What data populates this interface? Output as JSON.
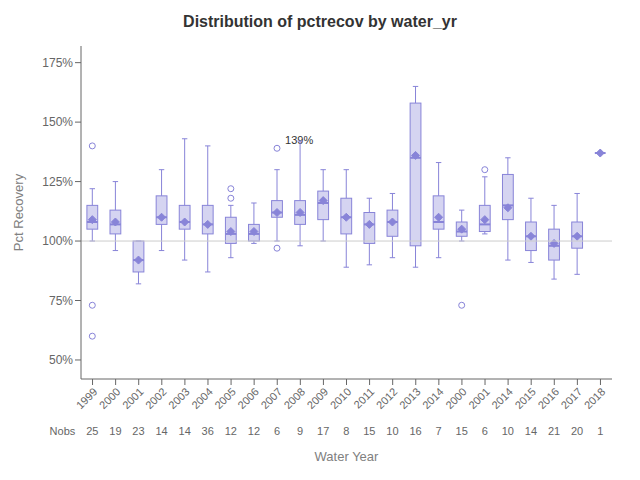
{
  "chart_data": {
    "type": "box",
    "title": "Distribution of pctrecov by water_yr",
    "x_label": "Water Year",
    "y_label": "Pct Recovery",
    "color": "#8884d8",
    "grid": false,
    "categories": [
      "1999",
      "2000",
      "2001",
      "2002",
      "2003",
      "2004",
      "2005",
      "2006",
      "2007",
      "2008",
      "2009",
      "2010",
      "2011",
      "2012",
      "2013",
      "2014",
      "2000",
      "2001",
      "2014",
      "2015",
      "2016",
      "2017",
      "2018"
    ],
    "boxes": [
      {
        "q1": 105,
        "med": 108,
        "q3": 115,
        "whislo": 100,
        "whishi": 122,
        "mean": 109,
        "fliers": [
          140,
          73,
          60
        ]
      },
      {
        "q1": 103,
        "med": 107,
        "q3": 113,
        "whislo": 96,
        "whishi": 125,
        "mean": 108,
        "fliers": []
      },
      {
        "q1": 87,
        "med": 92,
        "q3": 100,
        "whislo": 82,
        "whishi": 100,
        "mean": 92,
        "fliers": []
      },
      {
        "q1": 107,
        "med": 110,
        "q3": 119,
        "whislo": 96,
        "whishi": 130,
        "mean": 110,
        "fliers": []
      },
      {
        "q1": 105,
        "med": 108,
        "q3": 115,
        "whislo": 92,
        "whishi": 143,
        "mean": 108,
        "fliers": []
      },
      {
        "q1": 103,
        "med": 107,
        "q3": 115,
        "whislo": 87,
        "whishi": 140,
        "mean": 107,
        "fliers": []
      },
      {
        "q1": 99,
        "med": 103,
        "q3": 110,
        "whislo": 93,
        "whishi": 115,
        "mean": 104,
        "fliers": [
          122,
          118
        ]
      },
      {
        "q1": 100,
        "med": 103,
        "q3": 107,
        "whislo": 99,
        "whishi": 116,
        "mean": 104,
        "fliers": []
      },
      {
        "q1": 110,
        "med": 112,
        "q3": 117,
        "whislo": 100,
        "whishi": 130,
        "mean": 112,
        "fliers": [
          139,
          97
        ]
      },
      {
        "q1": 107,
        "med": 111,
        "q3": 117,
        "whislo": 98,
        "whishi": 142,
        "mean": 112,
        "fliers": []
      },
      {
        "q1": 109,
        "med": 116,
        "q3": 121,
        "whislo": 100,
        "whishi": 130,
        "mean": 117,
        "fliers": []
      },
      {
        "q1": 103,
        "med": 110,
        "q3": 118,
        "whislo": 89,
        "whishi": 130,
        "mean": 110,
        "fliers": []
      },
      {
        "q1": 99,
        "med": 107,
        "q3": 112,
        "whislo": 90,
        "whishi": 118,
        "mean": 107,
        "fliers": []
      },
      {
        "q1": 102,
        "med": 108,
        "q3": 113,
        "whislo": 93,
        "whishi": 120,
        "mean": 108,
        "fliers": []
      },
      {
        "q1": 98,
        "med": 135,
        "q3": 158,
        "whislo": 89,
        "whishi": 165,
        "mean": 136,
        "fliers": []
      },
      {
        "q1": 105,
        "med": 108,
        "q3": 119,
        "whislo": 93,
        "whishi": 133,
        "mean": 110,
        "fliers": []
      },
      {
        "q1": 102,
        "med": 104,
        "q3": 108,
        "whislo": 100,
        "whishi": 113,
        "mean": 105,
        "fliers": [
          73
        ]
      },
      {
        "q1": 104,
        "med": 107,
        "q3": 115,
        "whislo": 103,
        "whishi": 127,
        "mean": 109,
        "fliers": [
          130
        ]
      },
      {
        "q1": 109,
        "med": 115,
        "q3": 128,
        "whislo": 92,
        "whishi": 135,
        "mean": 114,
        "fliers": []
      },
      {
        "q1": 96,
        "med": 102,
        "q3": 108,
        "whislo": 91,
        "whishi": 118,
        "mean": 102,
        "fliers": []
      },
      {
        "q1": 92,
        "med": 98,
        "q3": 105,
        "whislo": 84,
        "whishi": 115,
        "mean": 99,
        "fliers": []
      },
      {
        "q1": 97,
        "med": 102,
        "q3": 108,
        "whislo": 86,
        "whishi": 120,
        "mean": 102,
        "fliers": []
      },
      {
        "q1": 137,
        "med": 137,
        "q3": 137,
        "whislo": 137,
        "whishi": 137,
        "mean": 137,
        "fliers": []
      }
    ],
    "nobs": {
      "label": "Nobs",
      "values": [
        25,
        19,
        23,
        14,
        14,
        36,
        12,
        12,
        6,
        9,
        17,
        8,
        15,
        10,
        16,
        7,
        15,
        6,
        10,
        14,
        21,
        20,
        1
      ]
    },
    "reference_line": 100,
    "annotations": [
      {
        "text": "139%",
        "index": 8,
        "y": 139
      }
    ],
    "ylim": [
      42,
      182
    ],
    "yticks": [
      {
        "value": 50,
        "label": "50%"
      },
      {
        "value": 75,
        "label": "75%"
      },
      {
        "value": 100,
        "label": "100%"
      },
      {
        "value": 125,
        "label": "125%"
      },
      {
        "value": 150,
        "label": "150%"
      },
      {
        "value": 175,
        "label": "175%"
      }
    ]
  }
}
